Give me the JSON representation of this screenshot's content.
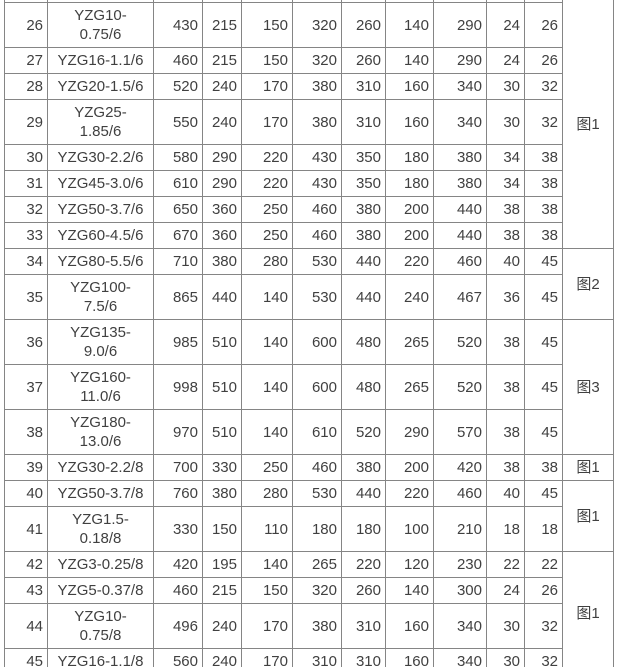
{
  "page": {
    "background": "#ffffff",
    "text_color": "#404040",
    "border_color": "#858585"
  },
  "table": {
    "description": "cropped specification table of YZG vibration motor models, rows 26-45",
    "rows": [
      {
        "no": "26",
        "model": "YZG10-\n0.75/6",
        "values": [
          "430",
          "215",
          "150",
          "320",
          "260",
          "140",
          "290",
          "24",
          "26"
        ]
      },
      {
        "no": "27",
        "model": "YZG16-1.1/6",
        "values": [
          "460",
          "215",
          "150",
          "320",
          "260",
          "140",
          "290",
          "24",
          "26"
        ]
      },
      {
        "no": "28",
        "model": "YZG20-1.5/6",
        "values": [
          "520",
          "240",
          "170",
          "380",
          "310",
          "160",
          "340",
          "30",
          "32"
        ]
      },
      {
        "no": "29",
        "model": "YZG25-\n1.85/6",
        "values": [
          "550",
          "240",
          "170",
          "380",
          "310",
          "160",
          "340",
          "30",
          "32"
        ]
      },
      {
        "no": "30",
        "model": "YZG30-2.2/6",
        "values": [
          "580",
          "290",
          "220",
          "430",
          "350",
          "180",
          "380",
          "34",
          "38"
        ]
      },
      {
        "no": "31",
        "model": "YZG45-3.0/6",
        "values": [
          "610",
          "290",
          "220",
          "430",
          "350",
          "180",
          "380",
          "34",
          "38"
        ]
      },
      {
        "no": "32",
        "model": "YZG50-3.7/6",
        "values": [
          "650",
          "360",
          "250",
          "460",
          "380",
          "200",
          "440",
          "38",
          "38"
        ]
      },
      {
        "no": "33",
        "model": "YZG60-4.5/6",
        "values": [
          "670",
          "360",
          "250",
          "460",
          "380",
          "200",
          "440",
          "38",
          "38"
        ]
      },
      {
        "no": "34",
        "model": "YZG80-5.5/6",
        "values": [
          "710",
          "380",
          "280",
          "530",
          "440",
          "220",
          "460",
          "40",
          "45"
        ]
      },
      {
        "no": "35",
        "model": "YZG100-\n7.5/6",
        "values": [
          "865",
          "440",
          "140",
          "530",
          "440",
          "240",
          "467",
          "36",
          "45"
        ]
      },
      {
        "no": "36",
        "model": "YZG135-\n9.0/6",
        "values": [
          "985",
          "510",
          "140",
          "600",
          "480",
          "265",
          "520",
          "38",
          "45"
        ]
      },
      {
        "no": "37",
        "model": "YZG160-\n11.0/6",
        "values": [
          "998",
          "510",
          "140",
          "600",
          "480",
          "265",
          "520",
          "38",
          "45"
        ]
      },
      {
        "no": "38",
        "model": "YZG180-\n13.0/6",
        "values": [
          "970",
          "510",
          "140",
          "610",
          "520",
          "290",
          "570",
          "38",
          "45"
        ]
      },
      {
        "no": "39",
        "model": "YZG30-2.2/8",
        "values": [
          "700",
          "330",
          "250",
          "460",
          "380",
          "200",
          "420",
          "38",
          "38"
        ]
      },
      {
        "no": "40",
        "model": "YZG50-3.7/8",
        "values": [
          "760",
          "380",
          "280",
          "530",
          "440",
          "220",
          "460",
          "40",
          "45"
        ]
      },
      {
        "no": "41",
        "model": "YZG1.5-\n0.18/8",
        "values": [
          "330",
          "150",
          "110",
          "180",
          "180",
          "100",
          "210",
          "18",
          "18"
        ]
      },
      {
        "no": "42",
        "model": "YZG3-0.25/8",
        "values": [
          "420",
          "195",
          "140",
          "265",
          "220",
          "120",
          "230",
          "22",
          "22"
        ]
      },
      {
        "no": "43",
        "model": "YZG5-0.37/8",
        "values": [
          "460",
          "215",
          "150",
          "320",
          "260",
          "140",
          "300",
          "24",
          "26"
        ]
      },
      {
        "no": "44",
        "model": "YZG10-\n0.75/8",
        "values": [
          "496",
          "240",
          "170",
          "380",
          "310",
          "160",
          "340",
          "30",
          "32"
        ]
      },
      {
        "no": "45",
        "model": "YZG16-1.1/8",
        "values": [
          "560",
          "240",
          "170",
          "310",
          "310",
          "160",
          "340",
          "30",
          "32"
        ]
      }
    ],
    "figure_groups": [
      {
        "label": "图1",
        "start": 0,
        "span": 8,
        "cut_top": true
      },
      {
        "label": "图2",
        "start": 8,
        "span": 2
      },
      {
        "label": "图3",
        "start": 10,
        "span": 3
      },
      {
        "label": "图1",
        "start": 13,
        "span": 1
      },
      {
        "label": "图1",
        "start": 14,
        "span": 2
      },
      {
        "label": "图1",
        "start": 16,
        "span": 4
      }
    ]
  }
}
